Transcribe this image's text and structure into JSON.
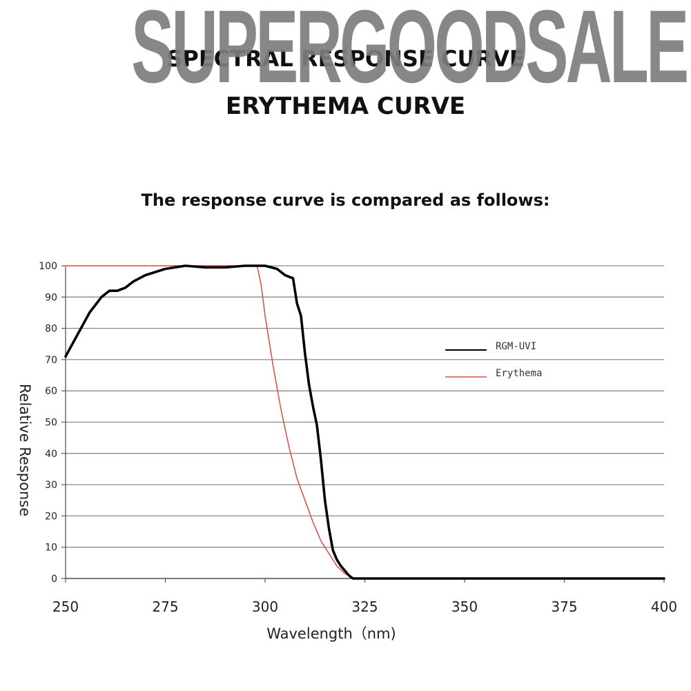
{
  "watermark": "SUPERGOODSALE",
  "heading_top": "SPECTRAL RESPONSE CURVE",
  "heading_main": "ERYTHEMA CURVE",
  "intro": "The response curve is compared as follows:",
  "chart_data": {
    "type": "line",
    "xlabel": "Wavelength（nm)",
    "ylabel": "Relative Response",
    "xlim": [
      250,
      400
    ],
    "ylim": [
      0,
      100
    ],
    "xticks": [
      250,
      275,
      300,
      325,
      350,
      375,
      400
    ],
    "yticks": [
      0,
      10,
      20,
      30,
      40,
      50,
      60,
      70,
      80,
      90,
      100
    ],
    "grid": "horizontal",
    "legend_position": "right",
    "series": [
      {
        "name": "RGM-UVI",
        "color": "#000000",
        "x": [
          250,
          253,
          256,
          259,
          261,
          263,
          265,
          267,
          270,
          275,
          280,
          285,
          290,
          295,
          300,
          303,
          305,
          306,
          307,
          308,
          309,
          310,
          311,
          312,
          313,
          314,
          315,
          316,
          317,
          318,
          319,
          320,
          321,
          322,
          323,
          325,
          350,
          375,
          400
        ],
        "y": [
          71,
          78,
          85,
          90,
          92,
          92,
          93,
          95,
          97,
          99,
          100,
          99.5,
          99.5,
          100,
          100,
          99,
          97,
          96.5,
          96,
          88,
          84,
          72,
          62,
          55,
          49,
          38,
          25,
          16,
          9,
          6,
          4,
          2.5,
          1,
          0,
          0,
          0,
          0,
          0,
          0
        ]
      },
      {
        "name": "Erythema",
        "color": "#d9534f",
        "x": [
          250,
          275,
          298,
          299,
          300,
          301,
          302,
          303,
          304,
          305,
          306,
          307,
          308,
          310,
          312,
          314,
          316,
          318,
          320,
          322,
          323,
          325,
          350,
          375,
          400
        ],
        "y": [
          100,
          100,
          100,
          94,
          84,
          76,
          68,
          61,
          54,
          48,
          42,
          37,
          32,
          25,
          18,
          12,
          8,
          4,
          1.5,
          0.3,
          0,
          0,
          0,
          0,
          0
        ]
      }
    ]
  }
}
